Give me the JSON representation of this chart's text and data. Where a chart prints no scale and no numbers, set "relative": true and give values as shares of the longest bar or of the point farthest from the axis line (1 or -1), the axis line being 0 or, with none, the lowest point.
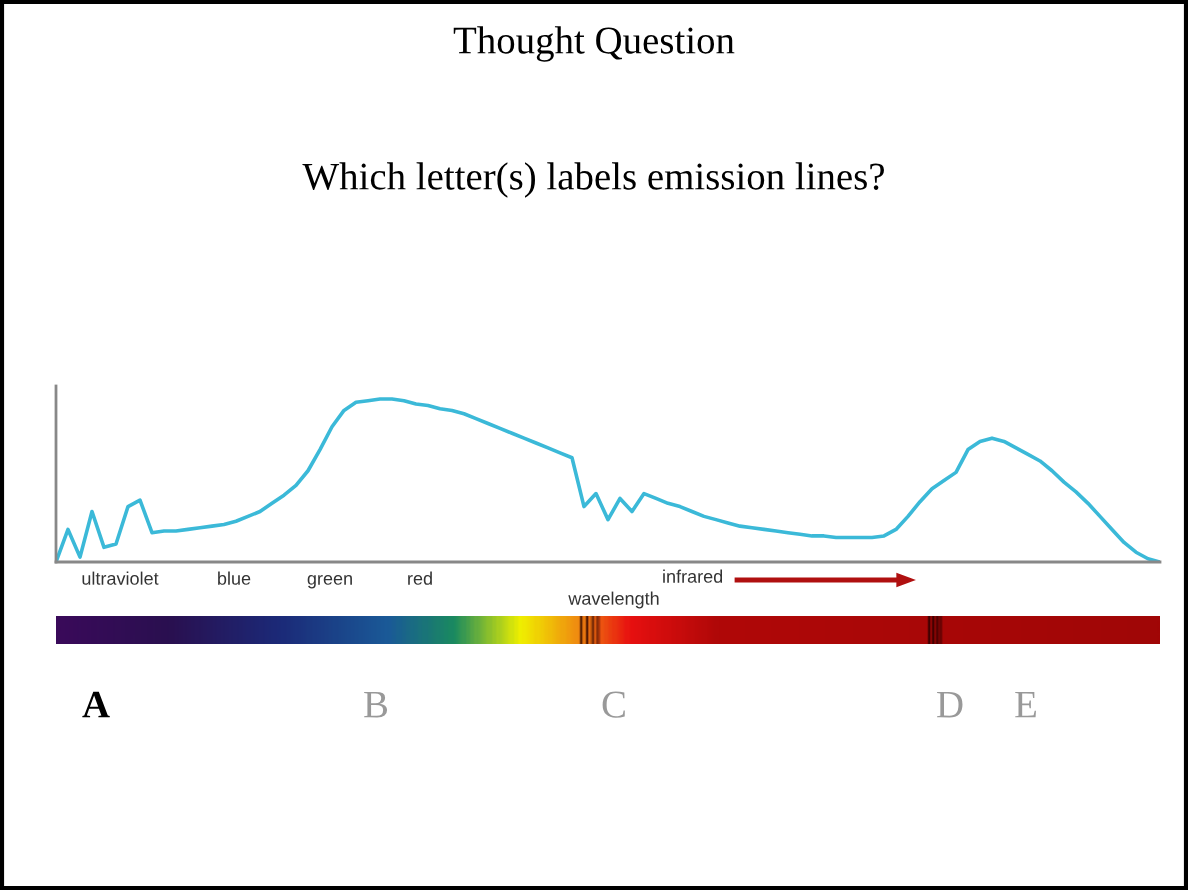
{
  "chart_data": {
    "type": "line",
    "title": "Thought Question",
    "subtitle": "Which letter(s) labels emission lines?",
    "xlabel": "wavelength",
    "annotations": [
      "ultraviolet",
      "blue",
      "green",
      "red",
      "infrared",
      "A",
      "B",
      "C",
      "D",
      "E"
    ],
    "relative": true,
    "categories": [
      null,
      null,
      null,
      null,
      null,
      null,
      null,
      null,
      null,
      null,
      null,
      null,
      null,
      null,
      null,
      null,
      null,
      null,
      null,
      null,
      null,
      null,
      null,
      null,
      null,
      null,
      null,
      null,
      null,
      null,
      null,
      null,
      null,
      null,
      null,
      null,
      null,
      null,
      null,
      null,
      null,
      null,
      null,
      null,
      null,
      null,
      null,
      null,
      null,
      null,
      null,
      null,
      null,
      null,
      null,
      null,
      null,
      null,
      null,
      null,
      null,
      null,
      null,
      null,
      null,
      null,
      null,
      null,
      null,
      null,
      null,
      null,
      null,
      null,
      null,
      null,
      null,
      null,
      null,
      null,
      null,
      null,
      null,
      null,
      null,
      null,
      null,
      null,
      null,
      null,
      null,
      null,
      null
    ],
    "series": [
      {
        "color": "#3bb9d8",
        "values": [
          0,
          0.2,
          0.03,
          0.31,
          0.09,
          0.11,
          0.34,
          0.38,
          0.18,
          0.19,
          0.19,
          0.2,
          0.21,
          0.22,
          0.23,
          0.25,
          0.28,
          0.31,
          0.36,
          0.41,
          0.47,
          0.56,
          0.69,
          0.83,
          0.93,
          0.98,
          0.99,
          1.0,
          1.0,
          0.99,
          0.97,
          0.96,
          0.94,
          0.93,
          0.91,
          0.88,
          0.85,
          0.82,
          0.79,
          0.76,
          0.73,
          0.7,
          0.67,
          0.64,
          0.34,
          0.42,
          0.26,
          0.39,
          0.31,
          0.42,
          0.39,
          0.36,
          0.34,
          0.31,
          0.28,
          0.26,
          0.24,
          0.22,
          0.21,
          0.2,
          0.19,
          0.18,
          0.17,
          0.16,
          0.16,
          0.15,
          0.15,
          0.15,
          0.15,
          0.16,
          0.2,
          0.28,
          0.37,
          0.45,
          0.5,
          0.55,
          0.69,
          0.74,
          0.76,
          0.74,
          0.7,
          0.66,
          0.62,
          0.56,
          0.49,
          0.43,
          0.36,
          0.28,
          0.2,
          0.12,
          0.06,
          0.02,
          0
        ]
      }
    ]
  }
}
